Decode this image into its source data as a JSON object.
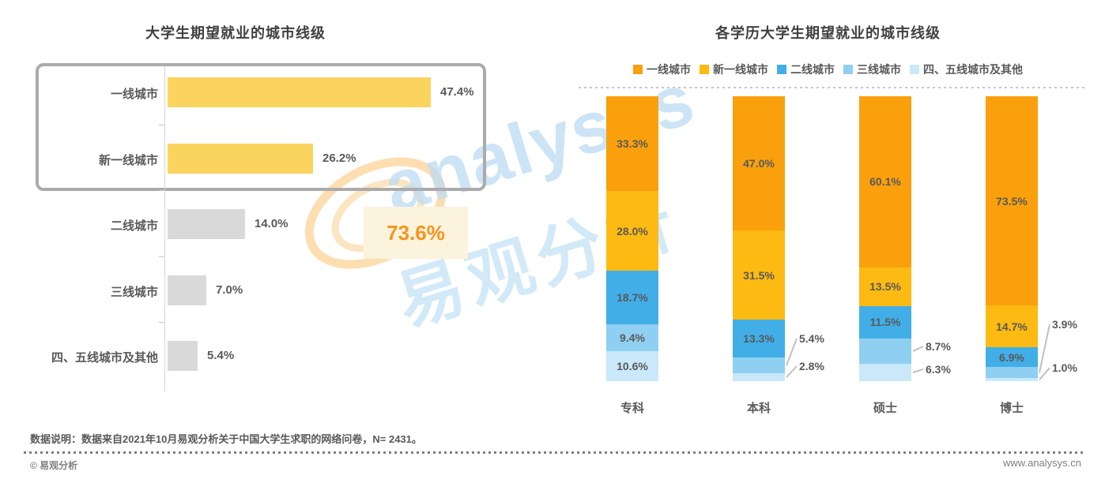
{
  "watermark": {
    "brand_en": "analysys",
    "brand_cn": "易观分析"
  },
  "footer": {
    "note": "数据说明：数据来自2021年10月易观分析关于中国大学生求职的网络问卷，N= 2431。",
    "copyright": "© 易观分析",
    "website": "www.analysys.cn"
  },
  "colors": {
    "left_highlight_bar": "#fbd45f",
    "left_normal_bar": "#d9d9d9",
    "annotation_text": "#f7941d",
    "annotation_bg": "#fcf3dc",
    "highlight_box_border": "#ababab",
    "title_text": "#404040",
    "label_text": "#595959",
    "leader_line": "#c0c0c0"
  },
  "chart_data": [
    {
      "type": "bar",
      "orientation": "horizontal",
      "title": "大学生期望就业的城市线级",
      "categories": [
        "一线城市",
        "新一线城市",
        "二线城市",
        "三线城市",
        "四、五线城市及其他"
      ],
      "values": [
        47.4,
        26.2,
        14.0,
        7.0,
        5.4
      ],
      "labels": [
        "47.4%",
        "26.2%",
        "14.0%",
        "7.0%",
        "5.4%"
      ],
      "highlighted": [
        true,
        true,
        false,
        false,
        false
      ],
      "annotation": {
        "text": "73.6%"
      },
      "xlim": [
        0,
        52
      ],
      "grid": false
    },
    {
      "type": "stacked-bar",
      "title": "各学历大学生期望就业的城市线级",
      "categories": [
        "专科",
        "本科",
        "硕士",
        "博士"
      ],
      "series": [
        {
          "name": "一线城市",
          "color": "#f9a00c",
          "values": [
            33.3,
            47.0,
            60.1,
            73.5
          ],
          "labels": [
            "33.3%",
            "47.0%",
            "60.1%",
            "73.5%"
          ]
        },
        {
          "name": "新一线城市",
          "color": "#fdba12",
          "values": [
            28.0,
            31.5,
            13.5,
            14.7
          ],
          "labels": [
            "28.0%",
            "31.5%",
            "13.5%",
            "14.7%"
          ]
        },
        {
          "name": "二线城市",
          "color": "#41aee8",
          "values": [
            18.7,
            13.3,
            11.5,
            6.9
          ],
          "labels": [
            "18.7%",
            "13.3%",
            "11.5%",
            "6.9%"
          ]
        },
        {
          "name": "三线城市",
          "color": "#8fd0f2",
          "values": [
            9.4,
            5.4,
            8.7,
            3.9
          ],
          "labels": [
            "9.4%",
            "5.4%",
            "8.7%",
            "3.9%"
          ]
        },
        {
          "name": "四、五线城市及其他",
          "color": "#c9e8fa",
          "values": [
            10.6,
            2.8,
            6.3,
            1.0
          ],
          "labels": [
            "10.6%",
            "2.8%",
            "6.3%",
            "1.0%"
          ]
        }
      ],
      "legend_position": "top",
      "ylim": [
        0,
        100
      ],
      "grid": false
    }
  ]
}
